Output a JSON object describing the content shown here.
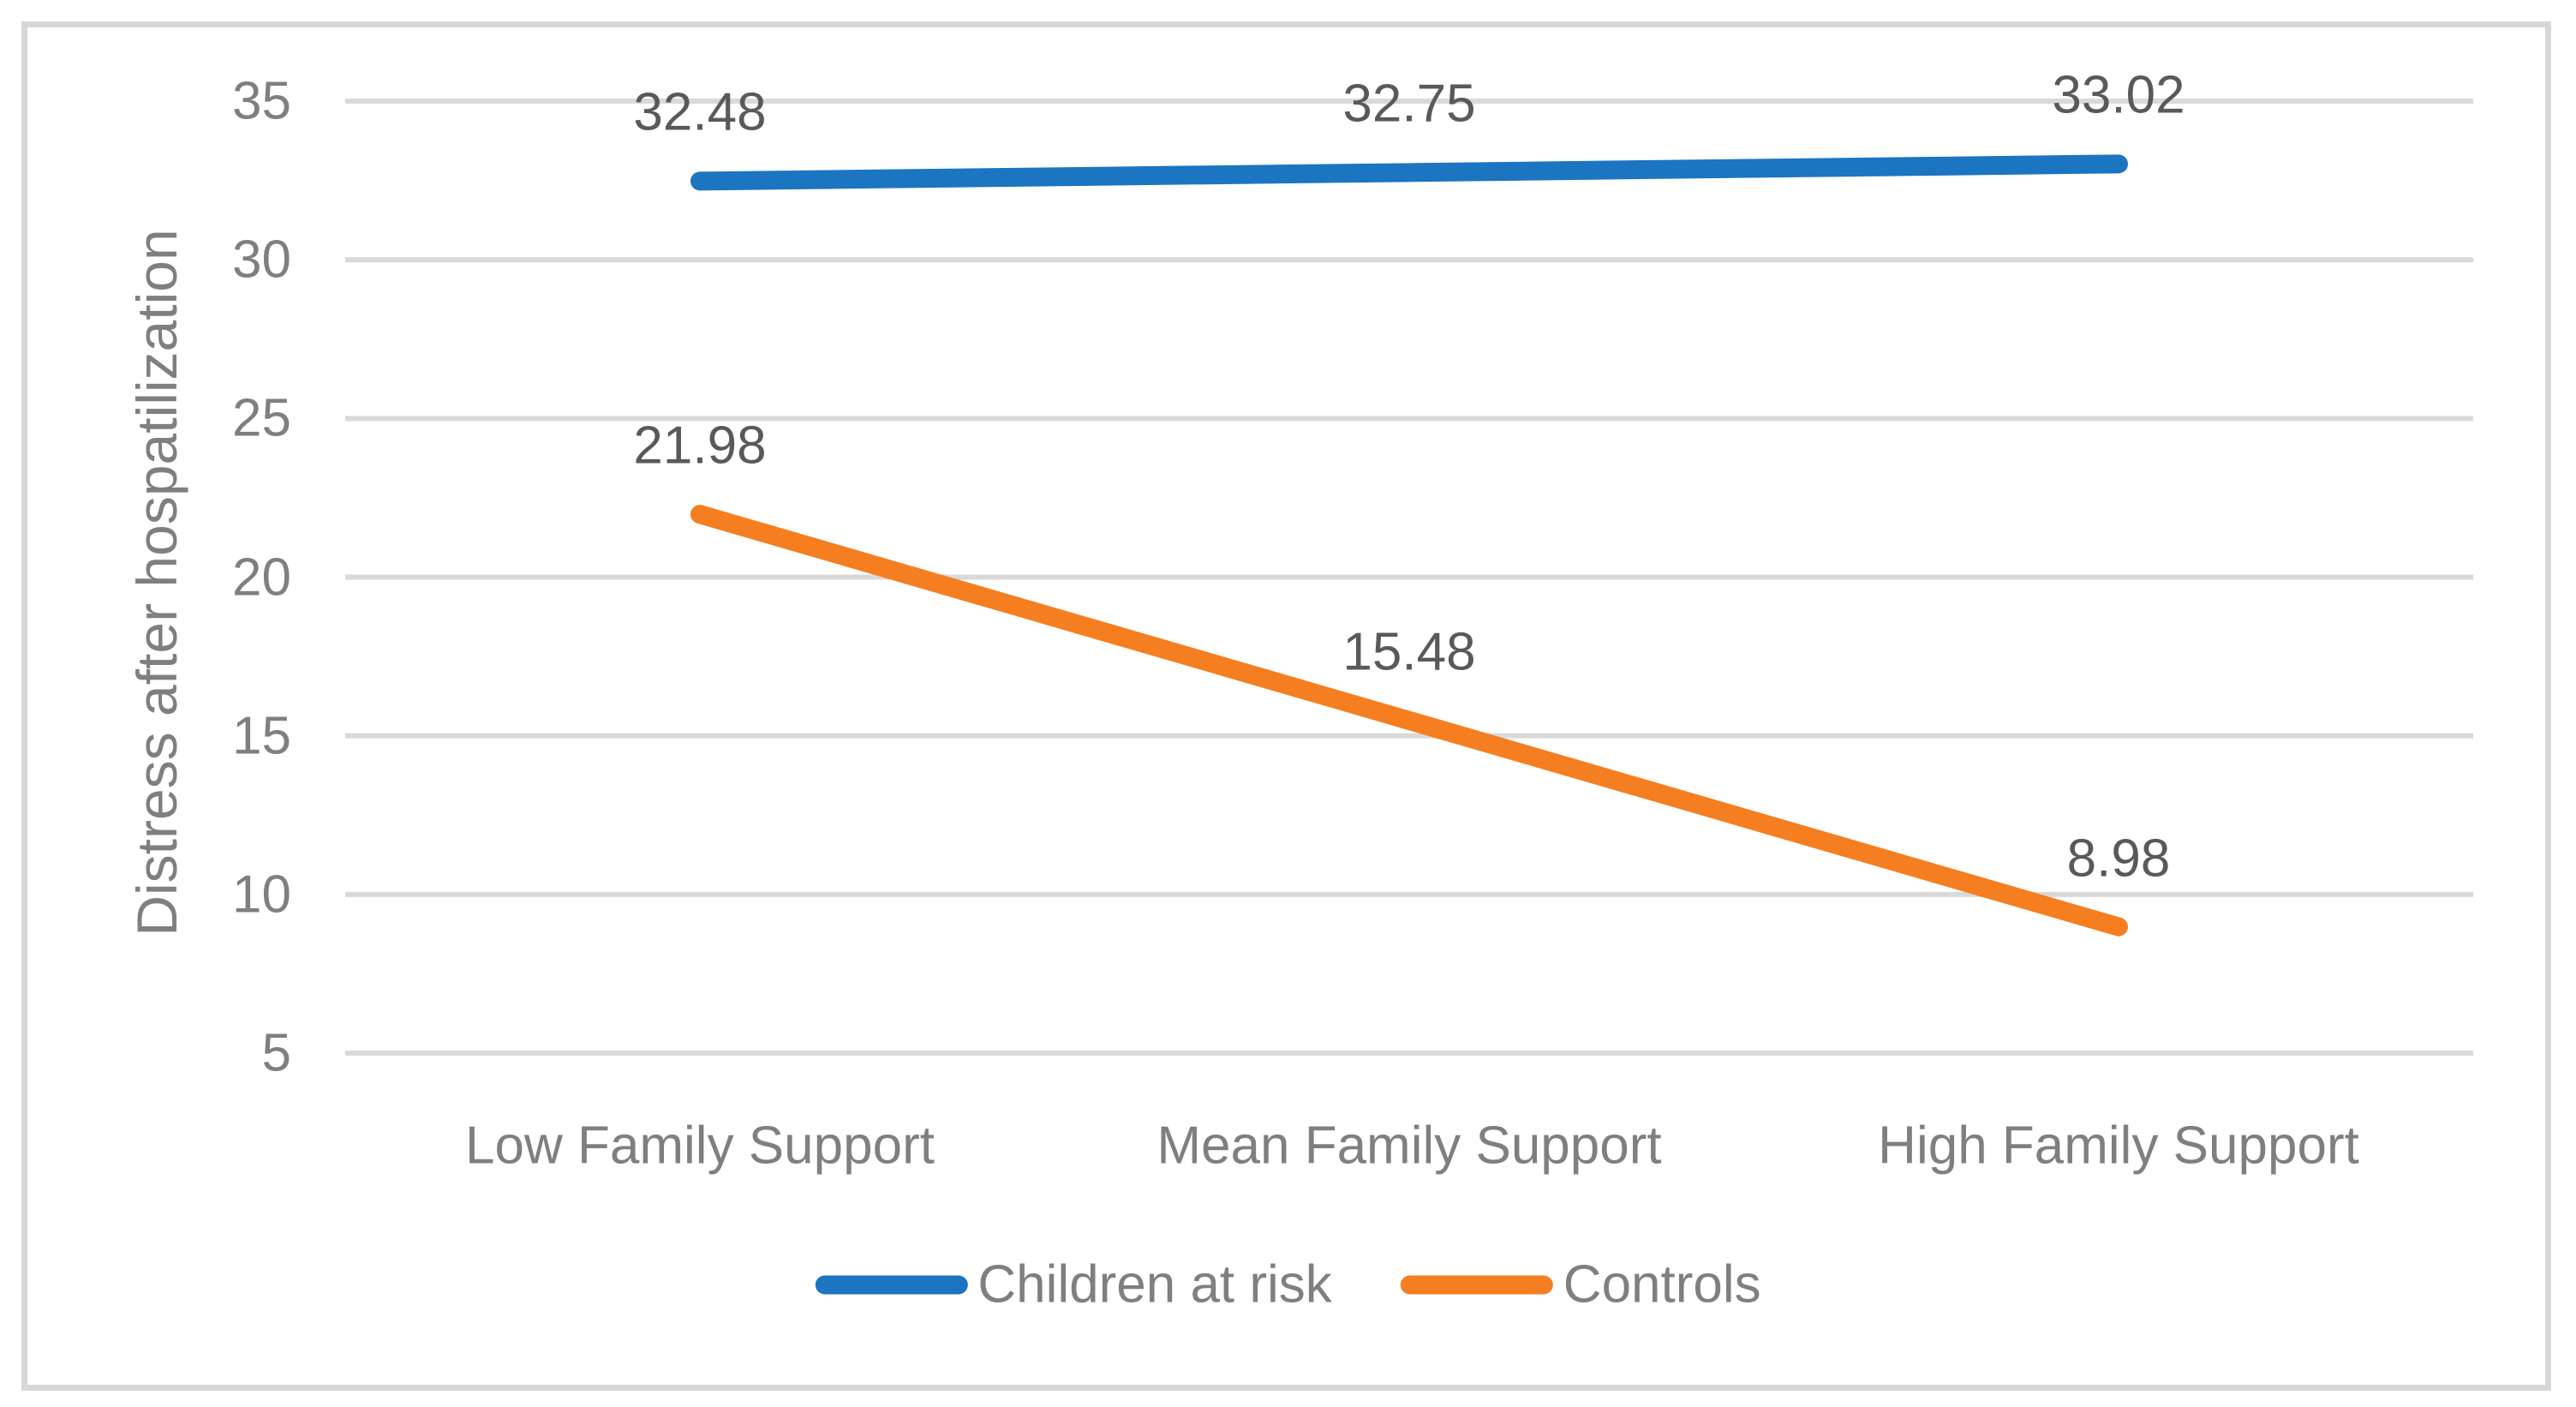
{
  "chart_data": {
    "type": "line",
    "title": "",
    "xlabel": "",
    "ylabel": "Distress after hospatilization",
    "categories": [
      "Low Family Support",
      "Mean Family Support",
      "High Family Support"
    ],
    "series": [
      {
        "name": "Children at risk",
        "color": "#1b75c0",
        "values": [
          32.48,
          32.75,
          33.02
        ],
        "point_labels": [
          "32.48",
          "32.75",
          "33.02"
        ]
      },
      {
        "name": "Controls",
        "color": "#f57e20",
        "values": [
          21.98,
          15.48,
          8.98
        ],
        "point_labels": [
          "21.98",
          "15.48",
          "8.98"
        ]
      }
    ],
    "y_ticks": [
      35,
      30,
      25,
      20,
      15,
      10,
      5
    ],
    "ylim": [
      2.5,
      37.5
    ],
    "grid": "horizontal",
    "legend_position": "bottom-center",
    "data_labels_position": "above"
  },
  "colors": {
    "gridline": "#d9d9d9",
    "figure_border": "#d7d7d7",
    "axis_text": "#7f7f7f",
    "data_label_text": "#595959",
    "background": "#ffffff"
  }
}
